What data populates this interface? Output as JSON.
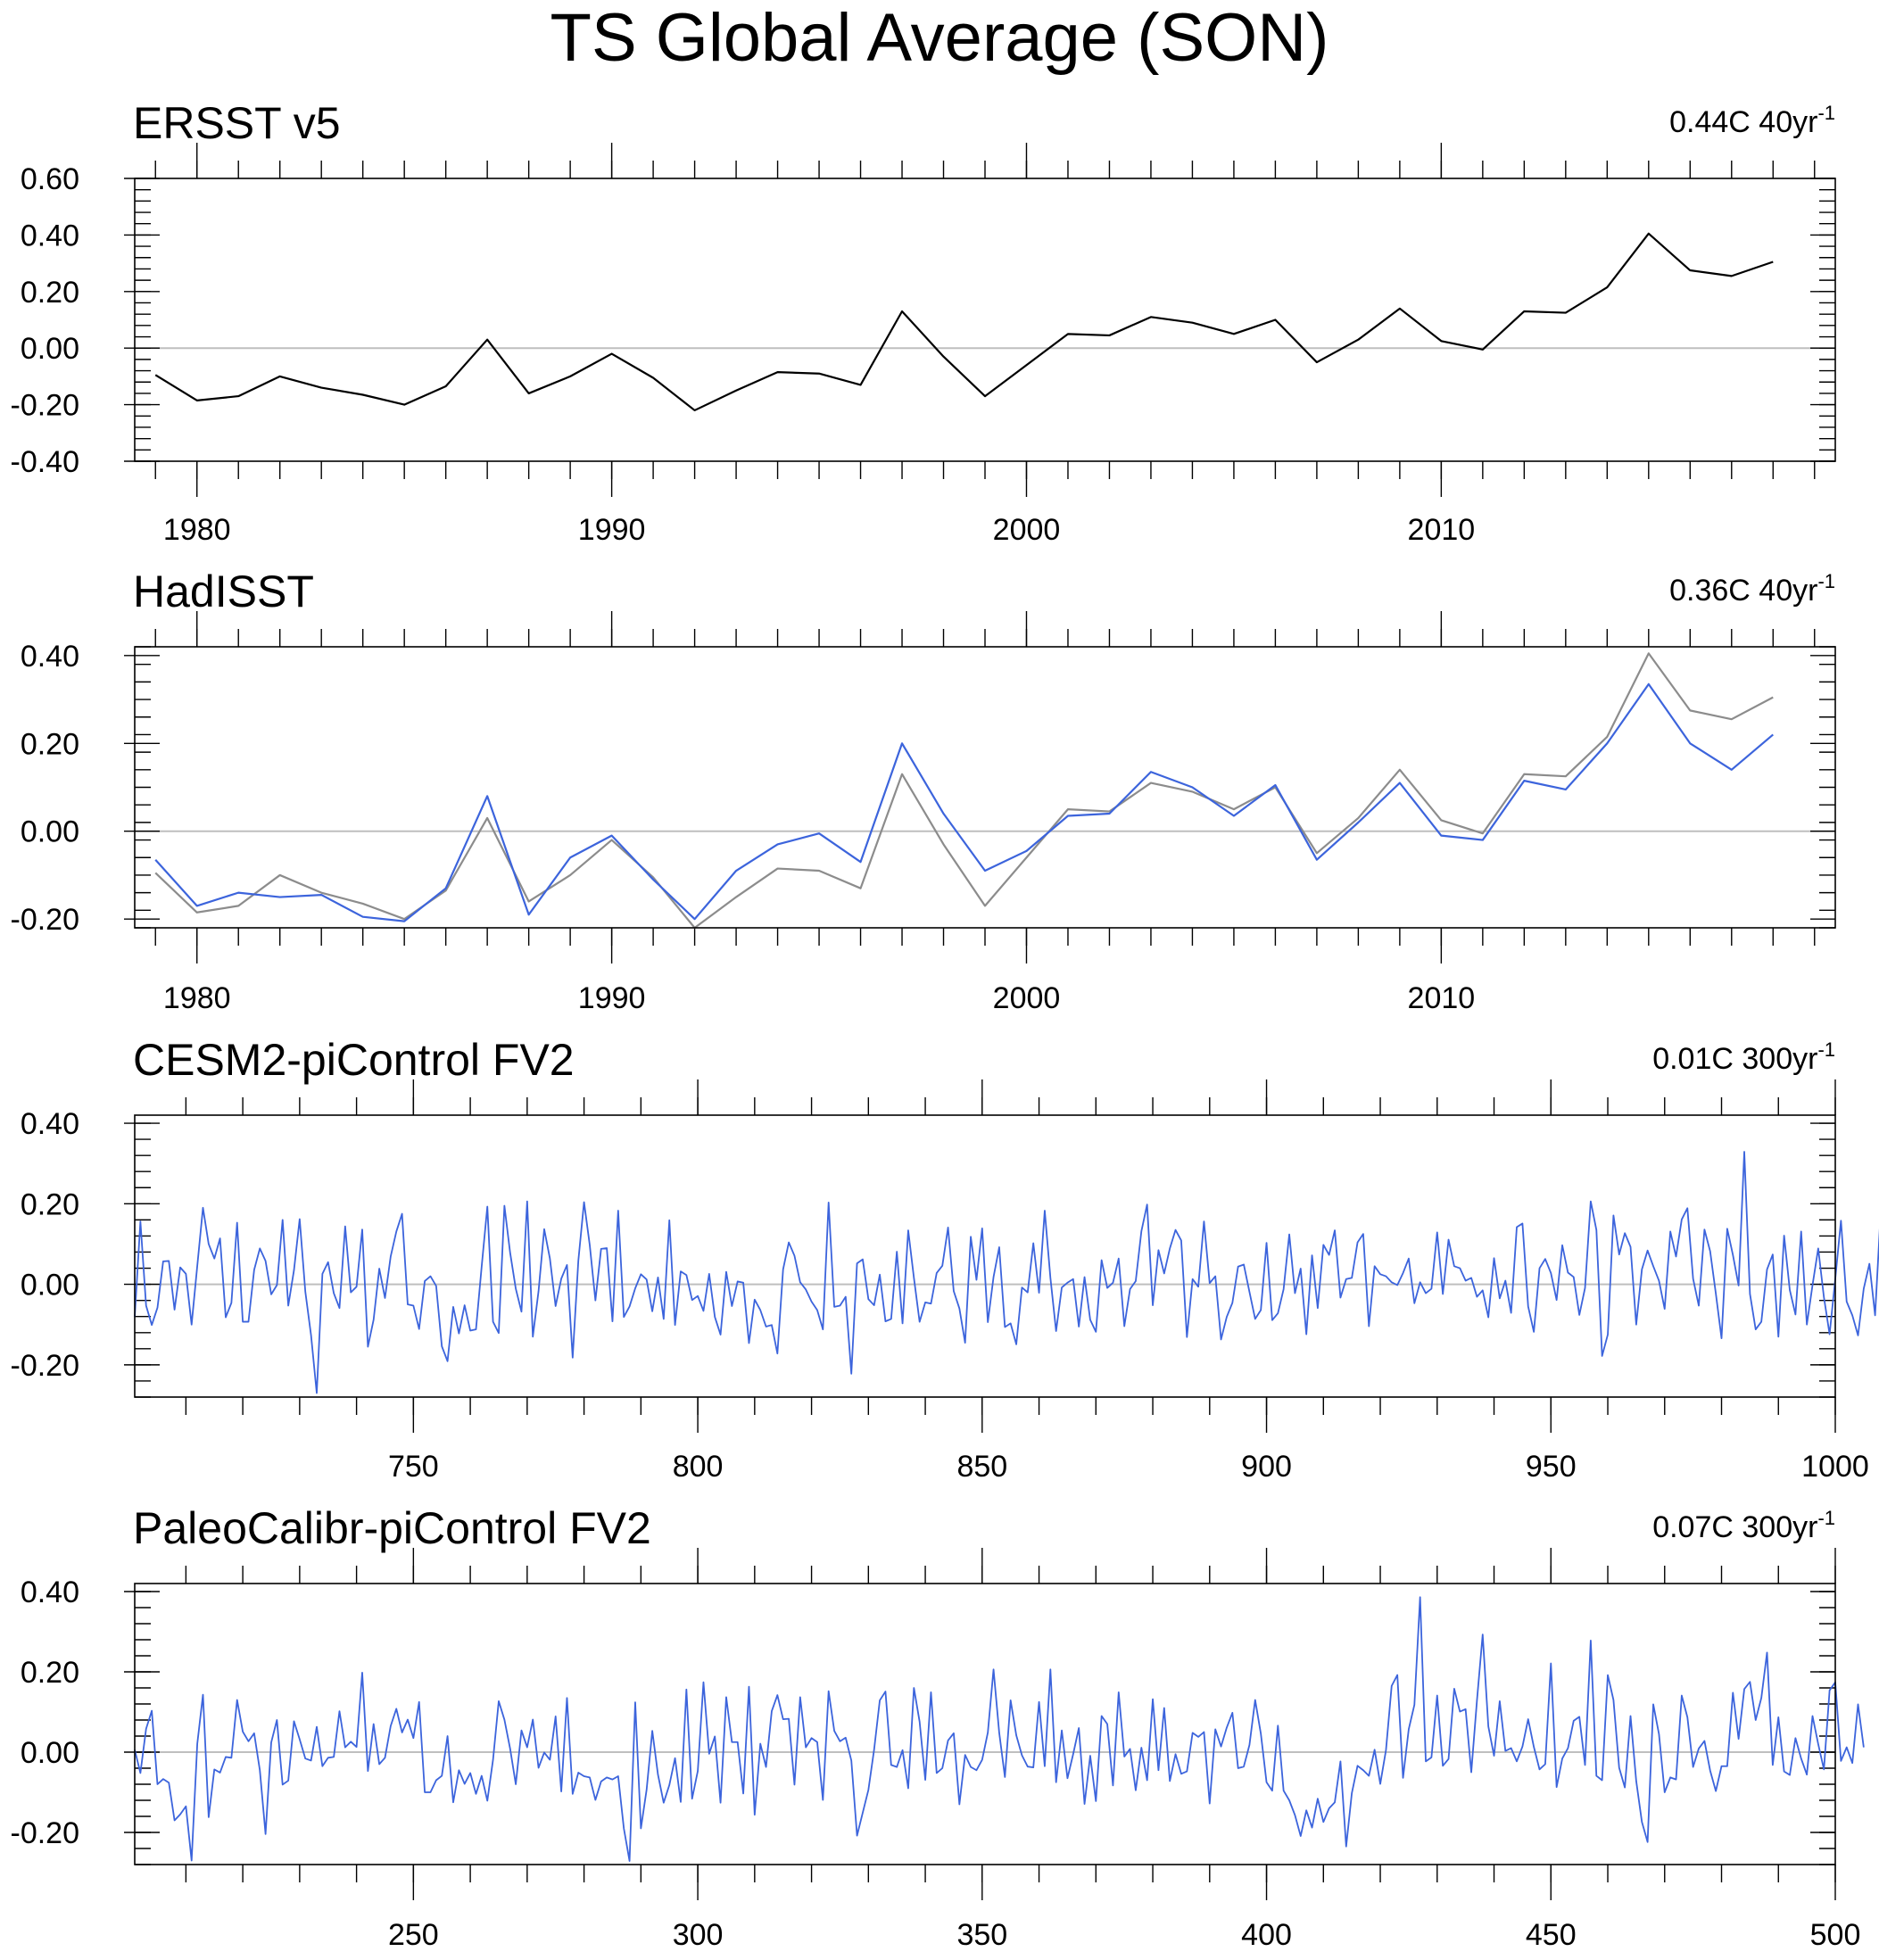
{
  "title": "TS Global Average (SON)",
  "colors": {
    "obs": "#000000",
    "ref": "#8c8c8c",
    "model": "#3c64dc"
  },
  "chart_data": [
    {
      "type": "line",
      "title": "ERSST v5",
      "trend_value": "0.44C 40yr",
      "trend_exp": "-1",
      "xlim": [
        1978.5,
        2019.5
      ],
      "ylim": [
        -0.4,
        0.6
      ],
      "x_ticks": [
        1980,
        1990,
        2000,
        2010
      ],
      "x_tick_labels": [
        "1980",
        "1990",
        "2000",
        "2010"
      ],
      "y_ticks": [
        -0.4,
        -0.2,
        0.0,
        0.2,
        0.4,
        0.6
      ],
      "y_tick_labels": [
        "-0.40",
        "-0.20",
        "0.00",
        "0.20",
        "0.40",
        "0.60"
      ],
      "x_start": 1979,
      "series": [
        {
          "name": "ERSST v5",
          "color": "#000000",
          "values": [
            -0.095,
            -0.185,
            -0.17,
            -0.1,
            -0.14,
            -0.165,
            -0.2,
            -0.135,
            0.03,
            -0.16,
            -0.1,
            -0.02,
            -0.105,
            -0.22,
            -0.15,
            -0.085,
            -0.09,
            -0.13,
            0.13,
            -0.03,
            -0.17,
            -0.06,
            0.05,
            0.045,
            0.11,
            0.09,
            0.05,
            0.1,
            -0.05,
            0.03,
            0.14,
            0.025,
            -0.005,
            0.13,
            0.125,
            0.215,
            0.405,
            0.275,
            0.255,
            0.305
          ]
        }
      ]
    },
    {
      "type": "line",
      "title": "HadISST",
      "trend_value": "0.36C 40yr",
      "trend_exp": "-1",
      "xlim": [
        1978.5,
        2019.5
      ],
      "ylim": [
        -0.22,
        0.42
      ],
      "x_ticks": [
        1980,
        1990,
        2000,
        2010
      ],
      "x_tick_labels": [
        "1980",
        "1990",
        "2000",
        "2010"
      ],
      "y_ticks": [
        -0.2,
        0.0,
        0.2,
        0.4
      ],
      "y_tick_labels": [
        "-0.20",
        "0.00",
        "0.20",
        "0.40"
      ],
      "x_start": 1979,
      "series": [
        {
          "name": "ERSST v5",
          "color": "#8c8c8c",
          "values": [
            -0.095,
            -0.185,
            -0.17,
            -0.1,
            -0.14,
            -0.165,
            -0.2,
            -0.135,
            0.03,
            -0.16,
            -0.1,
            -0.02,
            -0.105,
            -0.22,
            -0.15,
            -0.085,
            -0.09,
            -0.13,
            0.13,
            -0.03,
            -0.17,
            -0.06,
            0.05,
            0.045,
            0.11,
            0.09,
            0.05,
            0.1,
            -0.05,
            0.03,
            0.14,
            0.025,
            -0.005,
            0.13,
            0.125,
            0.215,
            0.405,
            0.275,
            0.255,
            0.305
          ]
        },
        {
          "name": "HadISST",
          "color": "#3c64dc",
          "values": [
            -0.065,
            -0.17,
            -0.14,
            -0.15,
            -0.145,
            -0.195,
            -0.205,
            -0.13,
            0.08,
            -0.19,
            -0.06,
            -0.01,
            -0.11,
            -0.2,
            -0.09,
            -0.03,
            -0.005,
            -0.07,
            0.2,
            0.04,
            -0.09,
            -0.045,
            0.035,
            0.04,
            0.135,
            0.1,
            0.035,
            0.105,
            -0.065,
            0.02,
            0.11,
            -0.01,
            -0.02,
            0.115,
            0.095,
            0.2,
            0.335,
            0.2,
            0.14,
            0.22
          ]
        }
      ]
    },
    {
      "type": "line",
      "title": "CESM2-piControl FV2",
      "trend_value": "0.01C 300yr",
      "trend_exp": "-1",
      "xlim": [
        701,
        1000
      ],
      "ylim": [
        -0.28,
        0.42
      ],
      "x_ticks": [
        750,
        800,
        850,
        900,
        950,
        1000
      ],
      "x_tick_labels": [
        "750",
        "800",
        "850",
        "900",
        "950",
        "1000"
      ],
      "y_ticks": [
        -0.2,
        0.0,
        0.2,
        0.4
      ],
      "y_tick_labels": [
        "-0.20",
        "0.00",
        "0.20",
        "0.40"
      ],
      "x_start": 701,
      "series": [
        {
          "name": "CESM2-piControl FV2",
          "color": "#3c64dc",
          "values": [
            -0.081,
            0.156,
            -0.053,
            -0.101,
            -0.058,
            0.057,
            0.058,
            -0.063,
            0.042,
            0.026,
            -0.1,
            0.046,
            0.19,
            0.1,
            0.064,
            0.114,
            -0.082,
            -0.046,
            0.153,
            -0.093,
            -0.093,
            0.036,
            0.089,
            0.058,
            -0.025,
            -0.002,
            0.16,
            -0.053,
            0.035,
            0.162,
            -0.019,
            -0.126,
            -0.27,
            0.026,
            0.055,
            -0.022,
            -0.059,
            0.144,
            -0.02,
            -0.006,
            0.136,
            -0.155,
            -0.088,
            0.039,
            -0.034,
            0.069,
            0.131,
            0.175,
            -0.05,
            -0.053,
            -0.111,
            0.008,
            0.02,
            -0.004,
            -0.154,
            -0.191,
            -0.056,
            -0.122,
            -0.052,
            -0.115,
            -0.112,
            0.044,
            0.193,
            -0.093,
            -0.121,
            0.195,
            0.079,
            -0.011,
            -0.068,
            0.206,
            -0.13,
            -0.017,
            0.137,
            0.064,
            -0.054,
            0.014,
            0.048,
            -0.182,
            0.059,
            0.204,
            0.098,
            -0.04,
            0.088,
            0.09,
            -0.092,
            0.183,
            -0.081,
            -0.055,
            -0.01,
            0.025,
            0.012,
            -0.067,
            0.017,
            -0.086,
            0.159,
            -0.101,
            0.032,
            0.023,
            -0.039,
            -0.029,
            -0.066,
            0.026,
            -0.081,
            -0.125,
            0.031,
            -0.054,
            0.007,
            0.004,
            -0.146,
            -0.038,
            -0.064,
            -0.105,
            -0.101,
            -0.172,
            0.037,
            0.104,
            0.071,
            0.005,
            -0.013,
            -0.043,
            -0.064,
            -0.112,
            0.203,
            -0.056,
            -0.053,
            -0.031,
            -0.222,
            0.052,
            0.062,
            -0.037,
            -0.052,
            0.024,
            -0.092,
            -0.086,
            0.081,
            -0.097,
            0.134,
            0.016,
            -0.093,
            -0.045,
            -0.048,
            0.028,
            0.046,
            0.141,
            -0.017,
            -0.06,
            -0.145,
            0.118,
            0.011,
            0.139,
            -0.094,
            0.018,
            0.092,
            -0.106,
            -0.097,
            -0.149,
            -0.008,
            -0.02,
            0.102,
            -0.021,
            0.183,
            0.016,
            -0.116,
            -0.008,
            0.004,
            0.013,
            -0.105,
            0.018,
            -0.088,
            -0.118,
            0.06,
            -0.009,
            0.004,
            0.064,
            -0.104,
            -0.012,
            0.008,
            0.132,
            0.198,
            -0.052,
            0.085,
            0.027,
            0.089,
            0.135,
            0.109,
            -0.131,
            0.013,
            -0.006,
            0.156,
            0.003,
            0.02,
            -0.137,
            -0.081,
            -0.046,
            0.044,
            0.049,
            -0.019,
            -0.086,
            -0.064,
            0.103,
            -0.089,
            -0.072,
            -0.012,
            0.124,
            -0.022,
            0.039,
            -0.124,
            0.072,
            -0.059,
            0.098,
            0.073,
            0.134,
            -0.033,
            0.013,
            0.016,
            0.104,
            0.125,
            -0.104,
            0.045,
            0.025,
            0.02,
            0.005,
            -0.002,
            0.028,
            0.064,
            -0.047,
            0.005,
            -0.022,
            -0.011,
            0.129,
            -0.024,
            0.111,
            0.045,
            0.04,
            0.009,
            0.016,
            -0.031,
            -0.015,
            -0.082,
            0.065,
            -0.035,
            0.009,
            -0.071,
            0.142,
            0.151,
            -0.055,
            -0.118,
            0.04,
            0.063,
            0.028,
            -0.039,
            0.097,
            0.029,
            0.018,
            -0.076,
            -0.009,
            0.206,
            0.135,
            -0.178,
            -0.125,
            0.171,
            0.074,
            0.127,
            0.093,
            -0.1,
            0.037,
            0.084,
            0.045,
            0.009,
            -0.061,
            0.131,
            0.069,
            0.161,
            0.189,
            0.014,
            -0.053,
            0.136,
            0.082,
            -0.023,
            -0.134,
            0.138,
            0.073,
            -0.003,
            0.329,
            -0.024,
            -0.112,
            -0.093,
            0.037,
            0.074,
            -0.13,
            0.121,
            -0.014,
            -0.075,
            0.131,
            -0.1,
            -0.002,
            0.089,
            -0.032,
            -0.124,
            0.014,
            0.158,
            -0.043,
            -0.077,
            -0.127,
            -0.011,
            0.051,
            -0.077,
            0.184,
            -0.018,
            -0.097
          ]
        }
      ]
    },
    {
      "type": "line",
      "title": "PaleoCalibr-piControl FV2",
      "trend_value": "0.07C 300yr",
      "trend_exp": "-1",
      "xlim": [
        201,
        500
      ],
      "ylim": [
        -0.28,
        0.42
      ],
      "x_ticks": [
        250,
        300,
        350,
        400,
        450,
        500
      ],
      "x_tick_labels": [
        "250",
        "300",
        "350",
        "400",
        "450",
        "500"
      ],
      "y_ticks": [
        -0.2,
        0.0,
        0.2,
        0.4
      ],
      "y_tick_labels": [
        "-0.20",
        "0.00",
        "0.20",
        "0.40"
      ],
      "x_start": 201,
      "series": [
        {
          "name": "PaleoCalibr-piControl FV2",
          "color": "#3c64dc",
          "values": [
            0.006,
            -0.052,
            0.058,
            0.103,
            -0.08,
            -0.067,
            -0.076,
            -0.17,
            -0.155,
            -0.135,
            -0.27,
            0.021,
            0.143,
            -0.162,
            -0.043,
            -0.051,
            -0.012,
            -0.014,
            0.13,
            0.051,
            0.027,
            0.047,
            -0.045,
            -0.204,
            0.024,
            0.08,
            -0.081,
            -0.071,
            0.077,
            0.032,
            -0.016,
            -0.021,
            0.063,
            -0.035,
            -0.014,
            -0.012,
            0.102,
            0.012,
            0.026,
            0.013,
            0.198,
            -0.047,
            0.07,
            -0.03,
            -0.014,
            0.065,
            0.108,
            0.049,
            0.081,
            0.035,
            0.125,
            -0.1,
            -0.1,
            -0.07,
            -0.059,
            0.04,
            -0.125,
            -0.045,
            -0.079,
            -0.052,
            -0.104,
            -0.059,
            -0.121,
            -0.019,
            0.127,
            0.081,
            0.009,
            -0.08,
            0.054,
            0.012,
            0.081,
            -0.039,
            -0.001,
            -0.019,
            0.089,
            -0.098,
            0.135,
            -0.104,
            -0.051,
            -0.06,
            -0.063,
            -0.119,
            -0.073,
            -0.063,
            -0.068,
            -0.06,
            -0.19,
            -0.271,
            0.124,
            -0.19,
            -0.094,
            0.053,
            -0.056,
            -0.126,
            -0.082,
            -0.015,
            -0.124,
            0.156,
            -0.116,
            -0.047,
            0.174,
            -0.004,
            0.039,
            -0.126,
            0.137,
            0.025,
            0.025,
            -0.103,
            0.163,
            -0.156,
            0.021,
            -0.037,
            0.102,
            0.142,
            0.082,
            0.083,
            -0.081,
            0.137,
            0.012,
            0.035,
            0.025,
            -0.119,
            0.152,
            0.053,
            0.027,
            0.036,
            -0.021,
            -0.208,
            -0.151,
            -0.094,
            0.006,
            0.129,
            0.151,
            -0.032,
            -0.037,
            0.005,
            -0.09,
            0.16,
            0.076,
            -0.069,
            0.149,
            -0.052,
            -0.04,
            0.029,
            0.047,
            -0.13,
            -0.007,
            -0.037,
            -0.045,
            -0.019,
            0.049,
            0.206,
            0.048,
            -0.062,
            0.129,
            0.042,
            -0.008,
            -0.036,
            -0.038,
            0.125,
            -0.035,
            0.206,
            -0.075,
            0.054,
            -0.065,
            -0.005,
            0.06,
            -0.129,
            -0.009,
            -0.122,
            0.09,
            0.07,
            -0.083,
            0.149,
            -0.011,
            0.008,
            -0.095,
            0.011,
            -0.07,
            0.132,
            -0.045,
            0.11,
            -0.072,
            -0.005,
            -0.054,
            -0.048,
            0.048,
            0.038,
            0.05,
            -0.128,
            0.057,
            0.014,
            0.061,
            0.098,
            -0.04,
            -0.036,
            0.018,
            0.13,
            0.046,
            -0.075,
            -0.096,
            0.066,
            -0.096,
            -0.12,
            -0.157,
            -0.209,
            -0.145,
            -0.188,
            -0.116,
            -0.174,
            -0.14,
            -0.125,
            -0.023,
            -0.235,
            -0.102,
            -0.034,
            -0.045,
            -0.059,
            0.006,
            -0.079,
            0.005,
            0.165,
            0.192,
            -0.064,
            0.057,
            0.118,
            0.386,
            -0.023,
            -0.013,
            0.141,
            -0.034,
            -0.017,
            0.158,
            0.101,
            0.107,
            -0.05,
            0.129,
            0.293,
            0.064,
            -0.009,
            0.127,
            0.003,
            0.01,
            -0.023,
            0.014,
            0.082,
            0.013,
            -0.043,
            -0.03,
            0.221,
            -0.087,
            -0.016,
            0.01,
            0.078,
            0.088,
            -0.032,
            0.278,
            -0.059,
            -0.07,
            0.192,
            0.13,
            -0.039,
            -0.088,
            0.09,
            -0.072,
            -0.174,
            -0.224,
            0.119,
            0.045,
            -0.1,
            -0.063,
            -0.068,
            0.141,
            0.087,
            -0.037,
            0.009,
            0.028,
            -0.046,
            -0.097,
            -0.035,
            -0.035,
            0.148,
            0.033,
            0.157,
            0.175,
            0.08,
            0.135,
            0.248,
            -0.032,
            0.087,
            -0.048,
            -0.057,
            0.035,
            -0.016,
            -0.056,
            0.09,
            0.02,
            -0.043,
            0.154,
            0.174,
            -0.022,
            0.012,
            -0.027,
            0.119,
            0.012
          ]
        }
      ]
    }
  ]
}
